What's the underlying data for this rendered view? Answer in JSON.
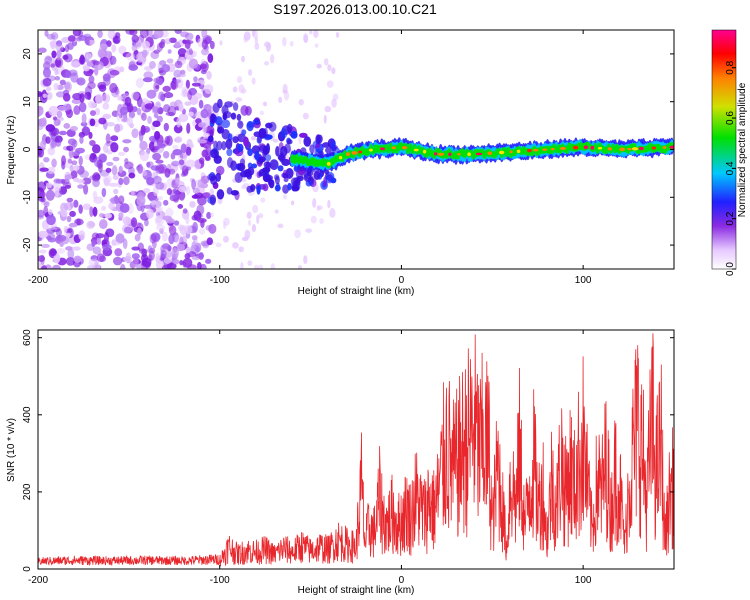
{
  "figure": {
    "title": "S197.2026.013.00.10.C21"
  },
  "chart_data": [
    {
      "type": "heatmap",
      "name": "spectrogram",
      "xlabel": "Height of straight line (km)",
      "ylabel": "Frequency (Hz)",
      "xlim": [
        -200,
        150
      ],
      "ylim": [
        -25,
        25
      ],
      "xticks": [
        -200,
        -100,
        0,
        100
      ],
      "yticks": [
        -20,
        -10,
        0,
        10,
        20
      ],
      "colorbar": {
        "label": "Normalized spectral amplitude",
        "range": [
          0,
          0.95
        ],
        "ticks": [
          0.0,
          0.2,
          0.4,
          0.6,
          0.8
        ],
        "colors": [
          "#ffffff",
          "#e6c8ff",
          "#8a2be2",
          "#2020ff",
          "#00c8ff",
          "#00e000",
          "#d0e000",
          "#ff8000",
          "#ff0000",
          "#ff0090"
        ]
      },
      "ridge": {
        "description_points": [
          {
            "x": -105,
            "y": 0
          },
          {
            "x": -80,
            "y": -1
          },
          {
            "x": -60,
            "y": -2
          },
          {
            "x": -40,
            "y": -3
          },
          {
            "x": -30,
            "y": -1
          },
          {
            "x": -15,
            "y": 0
          },
          {
            "x": 0,
            "y": 0.5
          },
          {
            "x": 20,
            "y": -1
          },
          {
            "x": 40,
            "y": -1
          },
          {
            "x": 60,
            "y": -0.5
          },
          {
            "x": 80,
            "y": 0
          },
          {
            "x": 100,
            "y": 0.5
          },
          {
            "x": 120,
            "y": 0
          },
          {
            "x": 150,
            "y": 0.5
          }
        ]
      }
    },
    {
      "type": "line",
      "name": "snr",
      "xlabel": "Height of straight line (km)",
      "ylabel": "SNR (10 * v/v)",
      "xlim": [
        -200,
        150
      ],
      "ylim": [
        0,
        620
      ],
      "xticks": [
        -200,
        -100,
        0,
        100
      ],
      "yticks": [
        0,
        200,
        400,
        600
      ],
      "color": "#e8262b",
      "series": [
        {
          "name": "SNR",
          "x": [
            -200,
            -180,
            -160,
            -140,
            -120,
            -100,
            -95,
            -90,
            -85,
            -80,
            -75,
            -70,
            -65,
            -60,
            -55,
            -50,
            -45,
            -40,
            -35,
            -30,
            -25,
            -22,
            -20,
            -18,
            -15,
            -12,
            -10,
            -8,
            -5,
            -2,
            0,
            3,
            5,
            8,
            10,
            13,
            15,
            18,
            20,
            25,
            28,
            30,
            33,
            35,
            38,
            40,
            43,
            45,
            48,
            50,
            53,
            55,
            58,
            60,
            63,
            65,
            68,
            70,
            73,
            75,
            78,
            80,
            83,
            85,
            88,
            90,
            93,
            95,
            98,
            100,
            103,
            105,
            108,
            110,
            113,
            115,
            118,
            120,
            123,
            125,
            128,
            130,
            133,
            135,
            138,
            140,
            143,
            145,
            148,
            150
          ],
          "values": [
            25,
            30,
            28,
            30,
            28,
            35,
            90,
            60,
            75,
            70,
            80,
            60,
            85,
            70,
            95,
            75,
            90,
            80,
            120,
            100,
            90,
            340,
            110,
            170,
            150,
            290,
            210,
            180,
            230,
            180,
            200,
            250,
            210,
            300,
            260,
            220,
            290,
            240,
            300,
            520,
            400,
            420,
            480,
            500,
            560,
            590,
            470,
            530,
            500,
            180,
            430,
            300,
            80,
            380,
            270,
            480,
            170,
            320,
            440,
            260,
            330,
            120,
            390,
            230,
            470,
            300,
            420,
            330,
            460,
            520,
            290,
            160,
            380,
            300,
            460,
            220,
            410,
            340,
            100,
            350,
            500,
            610,
            450,
            280,
            620,
            390,
            510,
            120,
            330,
            340
          ]
        }
      ]
    }
  ]
}
